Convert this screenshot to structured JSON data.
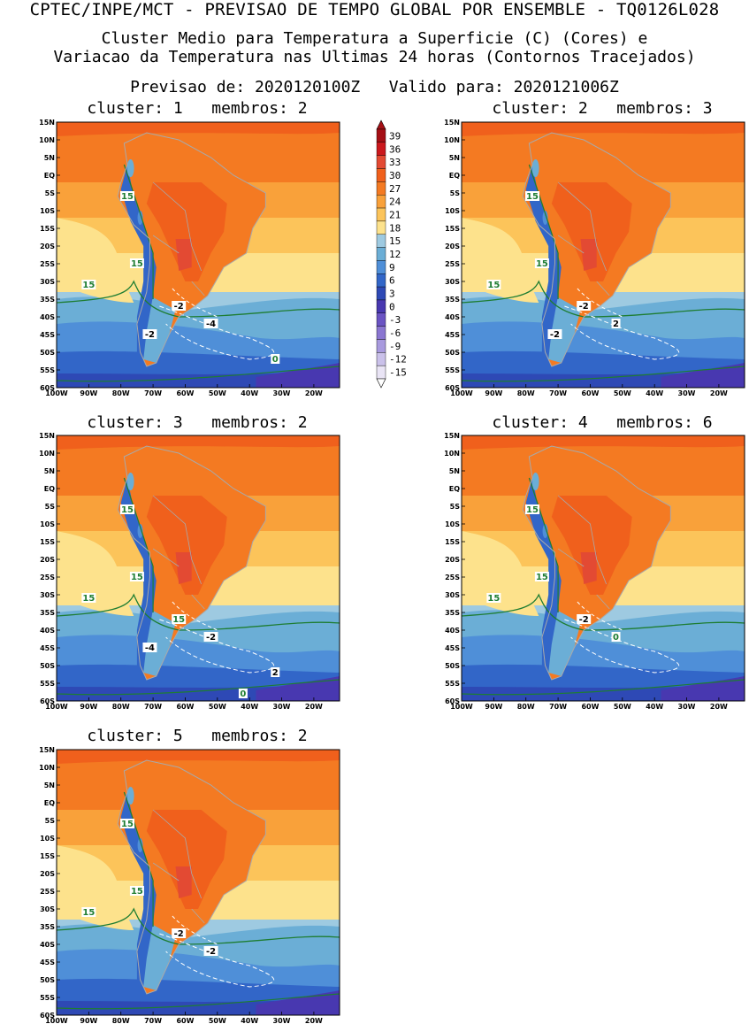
{
  "title": "CPTEC/INPE/MCT - PREVISAO DE TEMPO GLOBAL POR ENSEMBLE - TQ0126L028",
  "subtitle_line1": "Cluster Medio para Temperatura a Superficie (C) (Cores) e",
  "subtitle_line2": "Variacao da Temperatura nas Ultimas 24 horas (Contornos Tracejados)",
  "forecast_line": "Previsao de: 2020120100Z   Valido para: 2020121006Z",
  "lat_ticks": [
    "15N",
    "10N",
    "5N",
    "EQ",
    "5S",
    "10S",
    "15S",
    "20S",
    "25S",
    "30S",
    "35S",
    "40S",
    "45S",
    "50S",
    "55S",
    "60S"
  ],
  "lon_ticks": [
    "100W",
    "90W",
    "80W",
    "70W",
    "60W",
    "50W",
    "40W",
    "30W",
    "20W"
  ],
  "colorbar": {
    "labels": [
      "39",
      "36",
      "33",
      "30",
      "27",
      "24",
      "21",
      "18",
      "15",
      "12",
      "9",
      "6",
      "3",
      "0",
      "-3",
      "-6",
      "-9",
      "-12",
      "-15"
    ],
    "colors": [
      "#a50f15",
      "#cb181d",
      "#e34a33",
      "#f0601c",
      "#f47a22",
      "#f9a13a",
      "#fcc45a",
      "#fde28c",
      "#9ecae1",
      "#6baed6",
      "#4f8fd8",
      "#3266c8",
      "#2e49b5",
      "#4838b0",
      "#6a53c3",
      "#8a76d1",
      "#a89ade",
      "#cac1ea",
      "#e9e4f5"
    ]
  },
  "panels": [
    {
      "title": "cluster: 1   membros: 2",
      "labels": [
        "15",
        "15",
        "15",
        "-2",
        "-4",
        "-2",
        "0"
      ]
    },
    {
      "title": "cluster: 2   membros: 3",
      "labels": [
        "15",
        "15",
        "15",
        "-2",
        "2",
        "-2"
      ]
    },
    {
      "title": "cluster: 3   membros: 2",
      "labels": [
        "15",
        "15",
        "15",
        "15",
        "-2",
        "-4",
        "2",
        "0"
      ]
    },
    {
      "title": "cluster: 4   membros: 6",
      "labels": [
        "15",
        "15",
        "15",
        "-2",
        "0"
      ]
    },
    {
      "title": "cluster: 5   membros: 2",
      "labels": [
        "15",
        "15",
        "15",
        "-2",
        "-2"
      ]
    }
  ]
}
